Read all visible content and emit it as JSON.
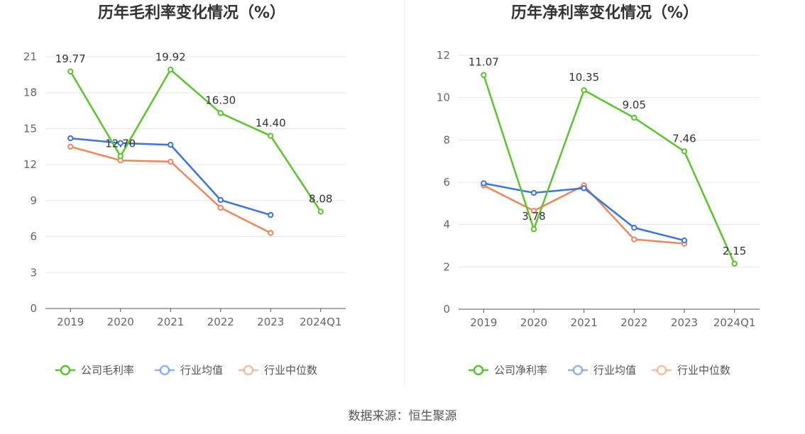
{
  "source_text": "数据来源：恒生聚源",
  "colors": {
    "company": "#5ac42b",
    "industry_avg": "#3a74dd",
    "industry_median": "#f0875a",
    "grid": "#e6e6ee",
    "axis": "#555555"
  },
  "chart_data": [
    {
      "type": "line",
      "title": "历年毛利率变化情况（%）",
      "categories": [
        "2019",
        "2020",
        "2021",
        "2022",
        "2023",
        "2024Q1"
      ],
      "ylim": [
        0,
        21
      ],
      "yticks": [
        0,
        3,
        6,
        9,
        12,
        15,
        18,
        21
      ],
      "grid": true,
      "legend_position": "bottom",
      "series": [
        {
          "name": "公司毛利率",
          "key": "company",
          "values": [
            19.77,
            12.7,
            19.92,
            16.3,
            14.4,
            8.08
          ],
          "labels": [
            "19.77",
            "12.70",
            "19.92",
            "16.30",
            "14.40",
            "8.08"
          ]
        },
        {
          "name": "行业均值",
          "key": "industry_avg",
          "values": [
            14.2,
            13.8,
            13.65,
            9.05,
            7.8,
            null
          ]
        },
        {
          "name": "行业中位数",
          "key": "industry_median",
          "values": [
            13.5,
            12.35,
            12.25,
            8.4,
            6.3,
            null
          ]
        }
      ]
    },
    {
      "type": "line",
      "title": "历年净利率变化情况（%）",
      "categories": [
        "2019",
        "2020",
        "2021",
        "2022",
        "2023",
        "2024Q1"
      ],
      "ylim": [
        0,
        12
      ],
      "yticks": [
        0,
        2,
        4,
        6,
        8,
        10,
        12
      ],
      "grid": true,
      "legend_position": "bottom",
      "series": [
        {
          "name": "公司净利率",
          "key": "company",
          "values": [
            11.07,
            3.78,
            10.35,
            9.05,
            7.46,
            2.15
          ],
          "labels": [
            "11.07",
            "3.78",
            "10.35",
            "9.05",
            "7.46",
            "2.15"
          ]
        },
        {
          "name": "行业均值",
          "key": "industry_avg",
          "values": [
            5.95,
            5.5,
            5.72,
            3.85,
            3.25,
            null
          ]
        },
        {
          "name": "行业中位数",
          "key": "industry_median",
          "values": [
            5.85,
            4.65,
            5.85,
            3.3,
            3.1,
            null
          ]
        }
      ]
    }
  ]
}
